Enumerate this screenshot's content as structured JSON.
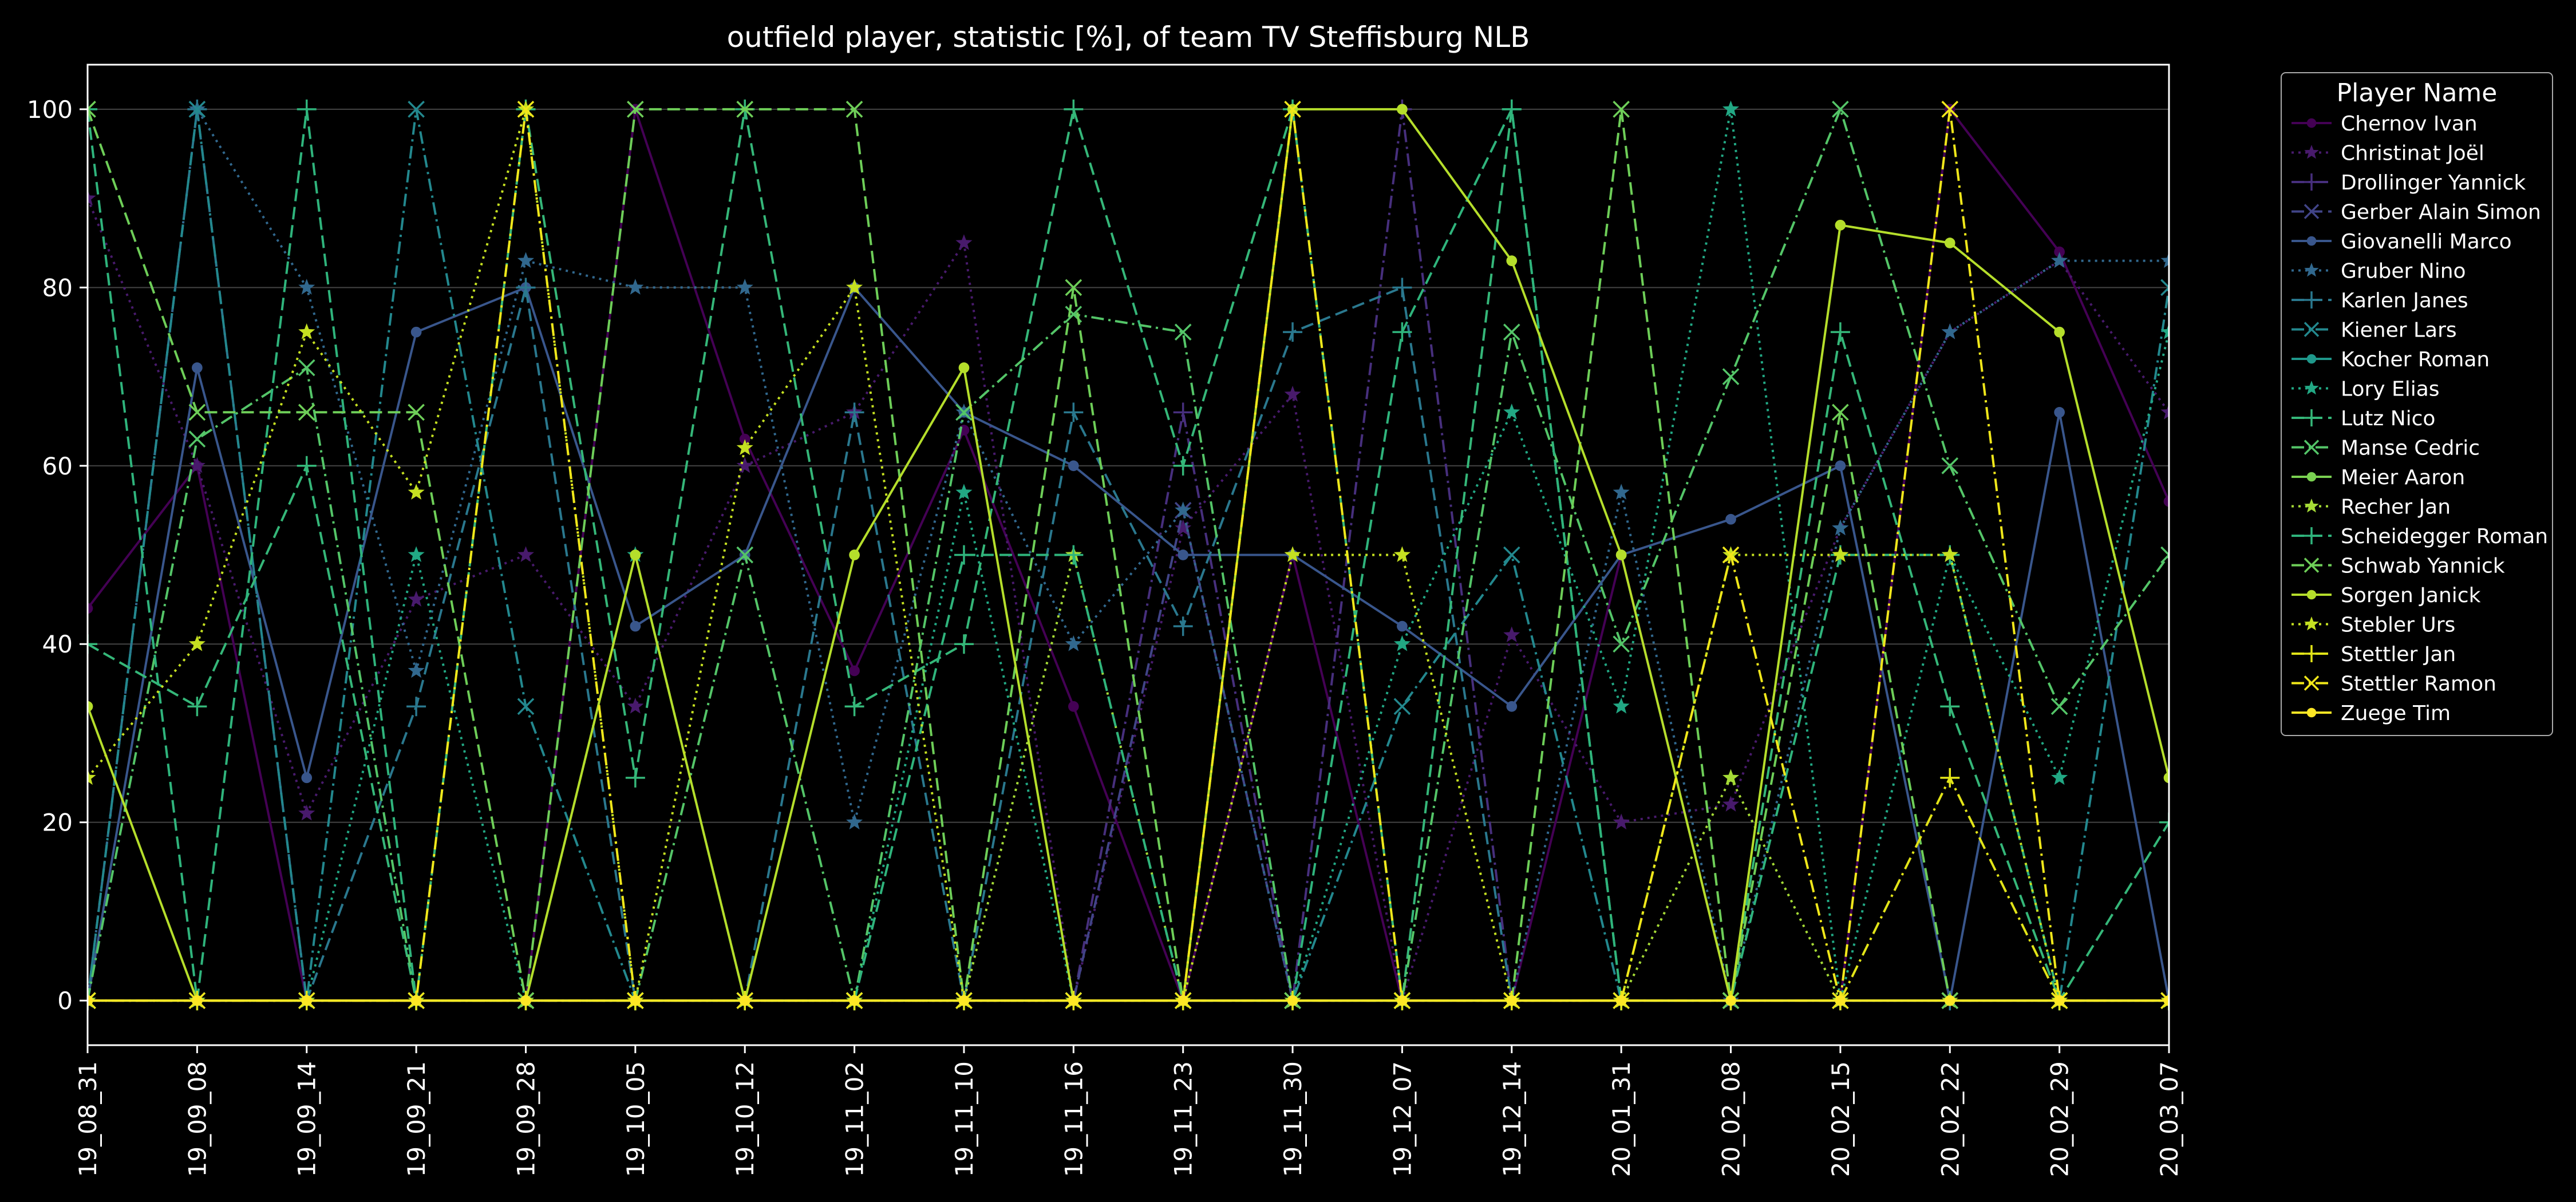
{
  "chart_data": {
    "type": "line",
    "title": "outfield player, statistic [%], of team TV Steffisburg NLB",
    "xlabel": "",
    "ylabel": "",
    "ylim": [
      -5,
      105
    ],
    "yticks": [
      0,
      20,
      40,
      60,
      80,
      100
    ],
    "grid": "horizontal",
    "legend_title": "Player Name",
    "legend_position": "outside-right",
    "categories": [
      "19_08_31",
      "19_09_08",
      "19_09_14",
      "19_09_21",
      "19_09_28",
      "19_10_05",
      "19_10_12",
      "19_11_02",
      "19_11_10",
      "19_11_16",
      "19_11_23",
      "19_11_30",
      "19_12_07",
      "19_12_14",
      "20_01_31",
      "20_02_08",
      "20_02_15",
      "20_02_22",
      "20_02_29",
      "20_03_07"
    ],
    "series": [
      {
        "name": "Chernov Ivan",
        "color": "#440154",
        "marker": "circle",
        "dash": "solid",
        "values": [
          44,
          60,
          0,
          0,
          0,
          100,
          63,
          37,
          64,
          33,
          0,
          50,
          0,
          0,
          50,
          0,
          0,
          100,
          84,
          56
        ]
      },
      {
        "name": "Christinat Joël",
        "color": "#481a6c",
        "marker": "star",
        "dash": "dotted",
        "values": [
          90,
          60,
          21,
          45,
          50,
          33,
          60,
          66,
          85,
          0,
          53,
          68,
          0,
          41,
          20,
          22,
          53,
          75,
          83,
          66
        ]
      },
      {
        "name": "Drollinger Yannick",
        "color": "#472f7d",
        "marker": "plus",
        "dash": "dashdot",
        "values": [
          0,
          0,
          0,
          0,
          0,
          0,
          0,
          0,
          0,
          0,
          66,
          0,
          100,
          0,
          0,
          0,
          0,
          0,
          0,
          0
        ]
      },
      {
        "name": "Gerber Alain Simon",
        "color": "#414487",
        "marker": "x",
        "dash": "dashed",
        "values": [
          0,
          0,
          0,
          0,
          0,
          0,
          0,
          0,
          0,
          0,
          55,
          0,
          0,
          0,
          0,
          0,
          0,
          0,
          0,
          0
        ]
      },
      {
        "name": "Giovanelli Marco",
        "color": "#39568c",
        "marker": "circle",
        "dash": "solid",
        "values": [
          0,
          71,
          25,
          75,
          80,
          42,
          50,
          80,
          66,
          60,
          50,
          50,
          42,
          33,
          50,
          54,
          60,
          0,
          66,
          0
        ]
      },
      {
        "name": "Gruber Nino",
        "color": "#31688e",
        "marker": "star",
        "dash": "dotted",
        "values": [
          0,
          100,
          80,
          37,
          83,
          80,
          80,
          20,
          66,
          40,
          55,
          0,
          0,
          0,
          57,
          0,
          53,
          75,
          83,
          83
        ]
      },
      {
        "name": "Karlen Janes",
        "color": "#2a788e",
        "marker": "plus",
        "dash": "dashed",
        "values": [
          0,
          100,
          0,
          33,
          80,
          0,
          0,
          66,
          0,
          66,
          42,
          75,
          80,
          0,
          0,
          0,
          0,
          0,
          0,
          0
        ]
      },
      {
        "name": "Kiener Lars",
        "color": "#23888e",
        "marker": "x",
        "dash": "dashdot",
        "values": [
          0,
          100,
          0,
          100,
          33,
          0,
          0,
          0,
          0,
          0,
          0,
          0,
          33,
          50,
          0,
          0,
          0,
          0,
          0,
          80
        ]
      },
      {
        "name": "Kocher Roman",
        "color": "#1f988b",
        "marker": "circle",
        "dash": "solid",
        "values": [
          0,
          0,
          0,
          0,
          0,
          0,
          0,
          0,
          0,
          0,
          0,
          0,
          0,
          0,
          0,
          0,
          0,
          0,
          0,
          0
        ]
      },
      {
        "name": "Lory Elias",
        "color": "#22a884",
        "marker": "star",
        "dash": "dotted",
        "values": [
          0,
          0,
          0,
          50,
          0,
          50,
          0,
          0,
          57,
          0,
          0,
          0,
          40,
          66,
          33,
          100,
          0,
          50,
          25,
          75
        ]
      },
      {
        "name": "Lutz Nico",
        "color": "#35b779",
        "marker": "plus",
        "dash": "dashed",
        "values": [
          40,
          33,
          60,
          0,
          100,
          25,
          100,
          33,
          40,
          100,
          60,
          100,
          0,
          100,
          0,
          0,
          75,
          33,
          0,
          20
        ]
      },
      {
        "name": "Manse Cedric",
        "color": "#54c568",
        "marker": "x",
        "dash": "dashdot",
        "values": [
          0,
          63,
          71,
          0,
          0,
          0,
          50,
          0,
          66,
          77,
          75,
          0,
          0,
          75,
          40,
          70,
          100,
          60,
          33,
          50
        ]
      },
      {
        "name": "Meier Aaron",
        "color": "#7ad151",
        "marker": "circle",
        "dash": "solid",
        "values": [
          0,
          0,
          0,
          0,
          0,
          0,
          0,
          0,
          0,
          0,
          0,
          0,
          0,
          0,
          0,
          0,
          0,
          0,
          0,
          0
        ]
      },
      {
        "name": "Recher Jan",
        "color": "#a5db36",
        "marker": "star",
        "dash": "dotted",
        "values": [
          0,
          0,
          0,
          0,
          0,
          0,
          0,
          0,
          0,
          50,
          0,
          0,
          0,
          0,
          0,
          25,
          0,
          0,
          0,
          0
        ]
      },
      {
        "name": "Scheidegger Roman",
        "color": "#2fb47c",
        "marker": "plus",
        "dash": "dashed",
        "values": [
          100,
          0,
          100,
          0,
          0,
          0,
          0,
          0,
          50,
          50,
          0,
          0,
          75,
          100,
          0,
          0,
          50,
          50,
          0,
          0
        ]
      },
      {
        "name": "Schwab Yannick",
        "color": "#6ece58",
        "marker": "x",
        "dash": "dashed",
        "values": [
          100,
          66,
          66,
          66,
          0,
          100,
          100,
          100,
          0,
          80,
          0,
          0,
          0,
          0,
          100,
          0,
          66,
          0,
          0,
          0
        ]
      },
      {
        "name": "Sorgen Janick",
        "color": "#b5de2b",
        "marker": "circle",
        "dash": "solid",
        "values": [
          33,
          0,
          0,
          0,
          0,
          50,
          0,
          50,
          71,
          0,
          0,
          100,
          100,
          83,
          50,
          0,
          87,
          85,
          75,
          25
        ]
      },
      {
        "name": "Stebler Urs",
        "color": "#c5e021",
        "marker": "star",
        "dash": "dotted",
        "values": [
          25,
          40,
          75,
          57,
          100,
          0,
          62,
          80,
          0,
          0,
          0,
          50,
          50,
          0,
          0,
          50,
          50,
          50,
          0,
          0
        ]
      },
      {
        "name": "Stettler Jan",
        "color": "#e2e418",
        "marker": "plus",
        "dash": "dashdot",
        "values": [
          0,
          0,
          0,
          0,
          0,
          0,
          0,
          0,
          0,
          0,
          0,
          0,
          0,
          0,
          0,
          0,
          0,
          25,
          0,
          0
        ]
      },
      {
        "name": "Stettler Ramon",
        "color": "#f0e71a",
        "marker": "x",
        "dash": "dashdot",
        "values": [
          0,
          0,
          0,
          0,
          100,
          0,
          0,
          0,
          0,
          0,
          0,
          100,
          0,
          0,
          0,
          50,
          0,
          100,
          0,
          0
        ]
      },
      {
        "name": "Zuege Tim",
        "color": "#fde725",
        "marker": "circle",
        "dash": "solid",
        "values": [
          0,
          0,
          0,
          0,
          0,
          0,
          0,
          0,
          0,
          0,
          0,
          0,
          0,
          0,
          0,
          0,
          0,
          0,
          0,
          0
        ]
      }
    ]
  }
}
